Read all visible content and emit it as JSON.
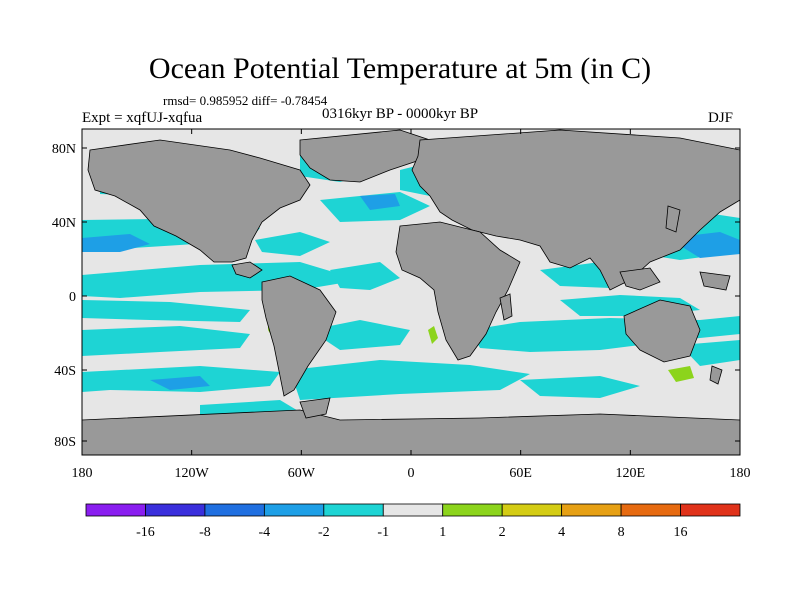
{
  "title": "Ocean Potential Temperature at 5m (in C)",
  "stats": "rmsd= 0.985952 diff= -0.78454",
  "experiment": "Expt = xqfUJ-xqfua",
  "period": "0316kyr BP - 0000kyr BP",
  "season": "DJF",
  "y_ticks": [
    "80N",
    "40N",
    "0",
    "40S",
    "80S"
  ],
  "x_ticks": [
    "180",
    "120W",
    "60W",
    "0",
    "60E",
    "120E",
    "180"
  ],
  "colorbar": {
    "colors": [
      "#8a1ef0",
      "#3a2fdc",
      "#1f6fe0",
      "#1e9fe6",
      "#1ed4d4",
      "#e6e6e6",
      "#8cd41c",
      "#d4cc14",
      "#e6a014",
      "#e66a10",
      "#e0321a"
    ],
    "labels": [
      "-16",
      "-8",
      "-4",
      "-2",
      "-1",
      "1",
      "2",
      "4",
      "8",
      "16"
    ]
  },
  "map_colors": {
    "ocean": "#e6e6e6",
    "land": "#999999",
    "cool": "#1ed4d4",
    "cold": "#1e9fe6",
    "warm": "#8cd41c"
  }
}
